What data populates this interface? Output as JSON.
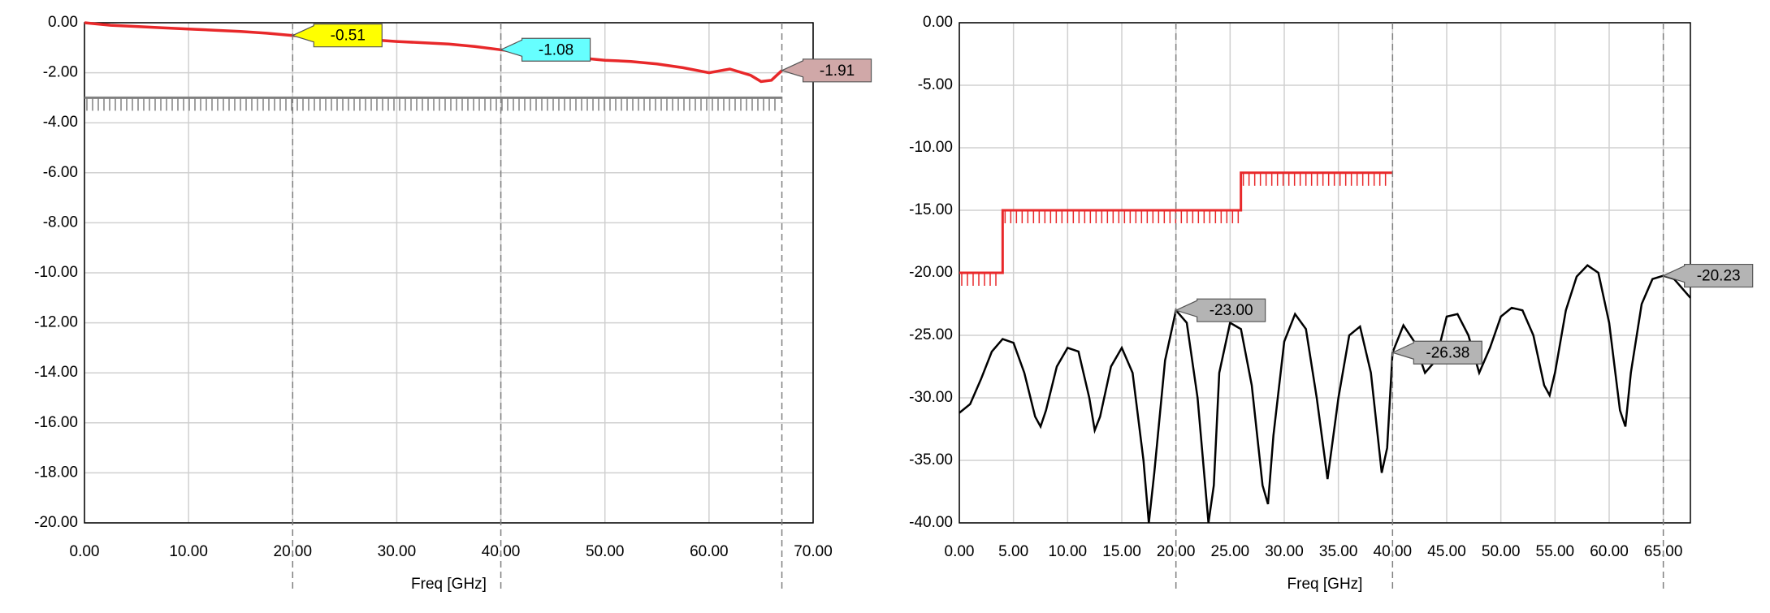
{
  "chart_data": [
    {
      "type": "line",
      "xlabel": "Freq [GHz]",
      "grid": true,
      "xlim": [
        0,
        70
      ],
      "xticks": [
        {
          "value": 0,
          "label": "0.00"
        },
        {
          "value": 10,
          "label": "10.00"
        },
        {
          "value": 20,
          "label": "20.00"
        },
        {
          "value": 30,
          "label": "30.00"
        },
        {
          "value": 40,
          "label": "40.00"
        },
        {
          "value": 50,
          "label": "50.00"
        },
        {
          "value": 60,
          "label": "60.00"
        },
        {
          "value": 70,
          "label": "70.00"
        }
      ],
      "ylim": [
        -20,
        0
      ],
      "yticks": [
        {
          "value": 0,
          "label": "0.00"
        },
        {
          "value": -2,
          "label": "-2.00"
        },
        {
          "value": -4,
          "label": "-4.00"
        },
        {
          "value": -6,
          "label": "-6.00"
        },
        {
          "value": -8,
          "label": "-8.00"
        },
        {
          "value": -10,
          "label": "-10.00"
        },
        {
          "value": -12,
          "label": "-12.00"
        },
        {
          "value": -14,
          "label": "-14.00"
        },
        {
          "value": -16,
          "label": "-16.00"
        },
        {
          "value": -18,
          "label": "-18.00"
        },
        {
          "value": -20,
          "label": "-20.00"
        }
      ],
      "series": [
        {
          "color": "#e8282a",
          "x": [
            0,
            2.5,
            5,
            7.5,
            10,
            12.5,
            15,
            17.5,
            20,
            22.5,
            25,
            27.5,
            30,
            32.5,
            35,
            37.5,
            40,
            42.5,
            45,
            47.5,
            50,
            52.5,
            55,
            57.5,
            60,
            62,
            64,
            65,
            66,
            67
          ],
          "values": [
            0,
            -0.1,
            -0.15,
            -0.2,
            -0.25,
            -0.3,
            -0.35,
            -0.42,
            -0.51,
            -0.55,
            -0.6,
            -0.68,
            -0.75,
            -0.8,
            -0.85,
            -0.95,
            -1.08,
            -1.2,
            -1.3,
            -1.4,
            -1.5,
            -1.55,
            -1.65,
            -1.8,
            -2.0,
            -1.85,
            -2.1,
            -2.35,
            -2.3,
            -1.91
          ]
        }
      ],
      "limits": [
        {
          "color": "#808080",
          "x": [
            0,
            67
          ],
          "values": [
            -3,
            -3
          ]
        }
      ],
      "markers": {
        "x": [
          20,
          40,
          67
        ],
        "values": [
          -0.51,
          -1.08,
          -1.91
        ],
        "colors": [
          "#ffff00",
          "#66ffff",
          "#d0a8a8"
        ]
      }
    },
    {
      "type": "line",
      "xlabel": "Freq [GHz]",
      "grid": true,
      "xlim": [
        0,
        67.5
      ],
      "xticks": [
        {
          "value": 0,
          "label": "0.00"
        },
        {
          "value": 5,
          "label": "5.00"
        },
        {
          "value": 10,
          "label": "10.00"
        },
        {
          "value": 15,
          "label": "15.00"
        },
        {
          "value": 20,
          "label": "20.00"
        },
        {
          "value": 25,
          "label": "25.00"
        },
        {
          "value": 30,
          "label": "30.00"
        },
        {
          "value": 35,
          "label": "35.00"
        },
        {
          "value": 40,
          "label": "40.00"
        },
        {
          "value": 45,
          "label": "45.00"
        },
        {
          "value": 50,
          "label": "50.00"
        },
        {
          "value": 55,
          "label": "55.00"
        },
        {
          "value": 60,
          "label": "60.00"
        },
        {
          "value": 65,
          "label": "65.00"
        }
      ],
      "ylim": [
        -40,
        0
      ],
      "yticks": [
        {
          "value": 0,
          "label": "0.00"
        },
        {
          "value": -5,
          "label": "-5.00"
        },
        {
          "value": -10,
          "label": "-10.00"
        },
        {
          "value": -15,
          "label": "-15.00"
        },
        {
          "value": -20,
          "label": "-20.00"
        },
        {
          "value": -25,
          "label": "-25.00"
        },
        {
          "value": -30,
          "label": "-30.00"
        },
        {
          "value": -35,
          "label": "-35.00"
        },
        {
          "value": -40,
          "label": "-40.00"
        }
      ],
      "series": [
        {
          "color": "#000000",
          "x": [
            0,
            1,
            2,
            3,
            4,
            5,
            6,
            7,
            7.5,
            8,
            9,
            10,
            11,
            12,
            12.5,
            13,
            14,
            15,
            16,
            17,
            17.5,
            18,
            19,
            20,
            21,
            22,
            23,
            23.5,
            24,
            25,
            26,
            27,
            28,
            28.5,
            29,
            30,
            31,
            32,
            33,
            34,
            35,
            36,
            37,
            38,
            39,
            39.5,
            40,
            41,
            42,
            43,
            44,
            45,
            46,
            47,
            48,
            49,
            50,
            51,
            52,
            53,
            54,
            54.5,
            55,
            56,
            57,
            58,
            59,
            60,
            61,
            61.5,
            62,
            63,
            64,
            65,
            66,
            67,
            67.5
          ],
          "values": [
            -31.2,
            -30.5,
            -28.5,
            -26.3,
            -25.3,
            -25.6,
            -28,
            -31.5,
            -32.3,
            -31,
            -27.5,
            -26,
            -26.3,
            -30,
            -32.6,
            -31.5,
            -27.5,
            -26,
            -28,
            -35,
            -40,
            -36,
            -27,
            -23,
            -24,
            -30,
            -40,
            -37,
            -28,
            -24,
            -24.5,
            -29,
            -37,
            -38.5,
            -33,
            -25.5,
            -23.3,
            -24.5,
            -30,
            -36.5,
            -30,
            -25,
            -24.3,
            -28,
            -36,
            -34,
            -26.38,
            -24.2,
            -25.5,
            -28,
            -27,
            -23.5,
            -23.3,
            -25,
            -28,
            -26,
            -23.5,
            -22.8,
            -23,
            -25,
            -29,
            -29.8,
            -28,
            -23,
            -20.3,
            -19.4,
            -20,
            -24,
            -31,
            -32.3,
            -28,
            -22.5,
            -20.5,
            -20.23,
            -20.5,
            -21.5,
            -22
          ]
        }
      ],
      "limits": [
        {
          "color": "#e8282a",
          "x": [
            0,
            4,
            4,
            26,
            26,
            40
          ],
          "values": [
            -20,
            -20,
            -15,
            -15,
            -12,
            -12
          ]
        }
      ],
      "markers": {
        "x": [
          20,
          40,
          65
        ],
        "values": [
          -23,
          -26.38,
          -20.23
        ],
        "value_labels": [
          "-23.00",
          "-26.38",
          "-20.23"
        ],
        "colors": [
          "#b4b4b4",
          "#b4b4b4",
          "#b4b4b4"
        ]
      }
    }
  ]
}
